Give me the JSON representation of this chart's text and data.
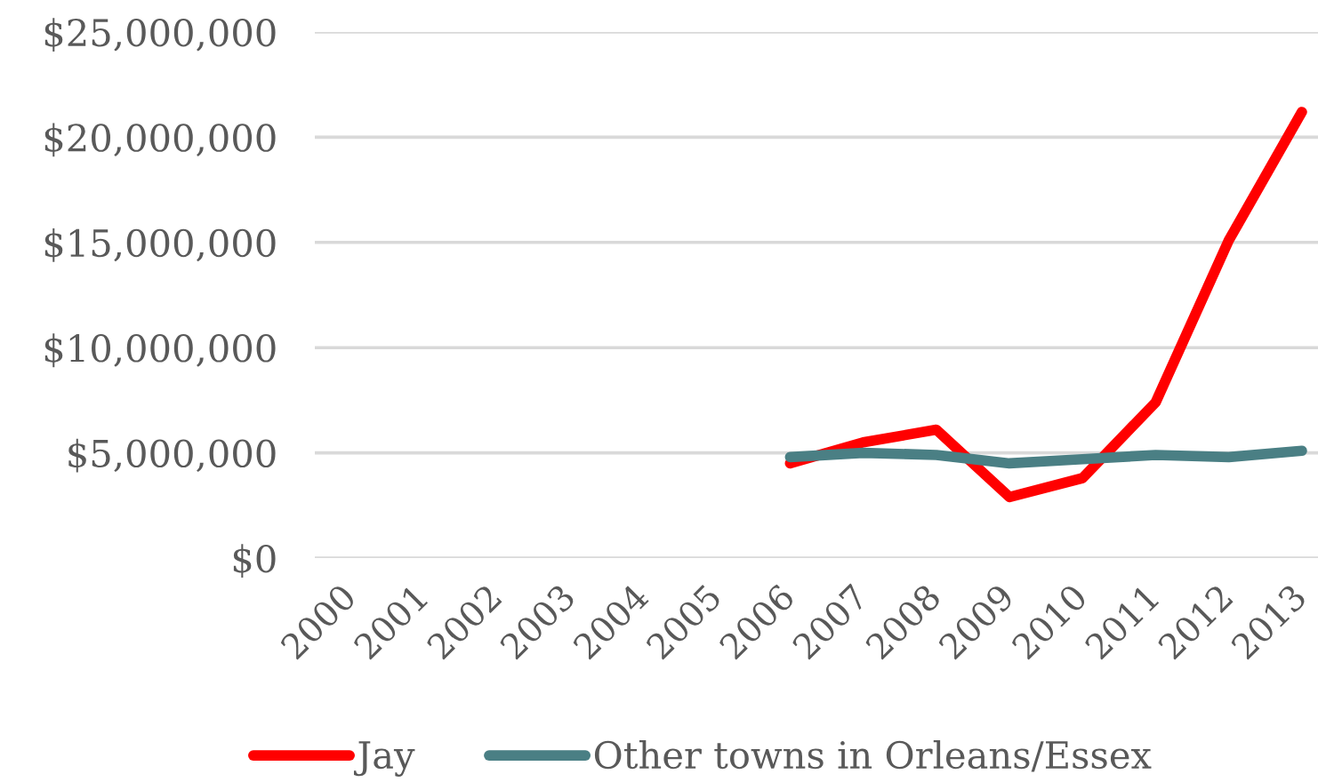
{
  "chart_data": {
    "type": "line",
    "categories": [
      "2000",
      "2001",
      "2002",
      "2003",
      "2004",
      "2005",
      "2006",
      "2007",
      "2008",
      "2009",
      "2010",
      "2011",
      "2012",
      "2013"
    ],
    "series": [
      {
        "name": "Jay",
        "color": "#ff0000",
        "values": [
          null,
          null,
          null,
          null,
          null,
          null,
          4500000,
          5500000,
          6100000,
          2900000,
          3800000,
          7400000,
          15100000,
          21200000
        ]
      },
      {
        "name": "Other towns in Orleans/Essex",
        "color": "#4a7f84",
        "values": [
          null,
          null,
          null,
          null,
          null,
          null,
          4800000,
          5000000,
          4900000,
          4500000,
          4700000,
          4900000,
          4800000,
          5100000
        ]
      }
    ],
    "ylim": [
      0,
      25000000
    ],
    "yticks": [
      {
        "value": 0,
        "label": "$0"
      },
      {
        "value": 5000000,
        "label": "$5,000,000"
      },
      {
        "value": 10000000,
        "label": "$10,000,000"
      },
      {
        "value": 15000000,
        "label": "$15,000,000"
      },
      {
        "value": 20000000,
        "label": "$20,000,000"
      },
      {
        "value": 25000000,
        "label": "$25,000,000"
      }
    ],
    "grid": "y",
    "legend": "bottom",
    "marker": "none",
    "line_style": "solid"
  }
}
